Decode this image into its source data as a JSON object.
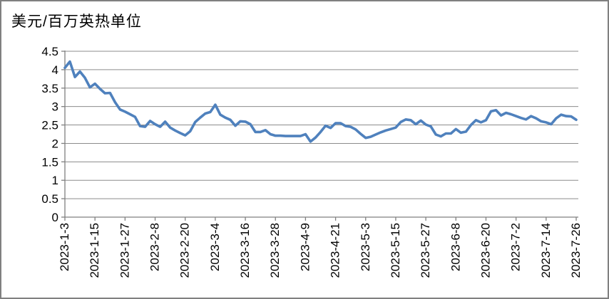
{
  "chart": {
    "title": "美元/百万英热单位",
    "colors": {
      "line": "#4F81BD",
      "gridline": "#8C8C8C",
      "axis": "#808080",
      "text": "#000000",
      "background": "#FFFFFF",
      "frame_border": "#808080"
    }
  },
  "chart_data": {
    "type": "line",
    "title": "美元/百万英热单位",
    "unit": "美元/百万英热单位",
    "legend": "none",
    "grid": "horizontal",
    "ylim": [
      0,
      4.5
    ],
    "y_tick_values": [
      0,
      0.5,
      1,
      1.5,
      2,
      2.5,
      3,
      3.5,
      4,
      4.5
    ],
    "y_tick_labels": [
      "0",
      "0.5",
      "1",
      "1.5",
      "2",
      "2.5",
      "3",
      "3.5",
      "4",
      "4.5"
    ],
    "x_range_days": [
      0,
      204
    ],
    "x_tick_days": [
      0,
      12,
      24,
      36,
      48,
      60,
      72,
      84,
      96,
      108,
      120,
      132,
      144,
      156,
      168,
      180,
      192,
      204
    ],
    "x_tick_labels": [
      "2023-1-3",
      "2023-1-15",
      "2023-1-27",
      "2023-2-8",
      "2023-2-20",
      "2023-3-4",
      "2023-3-16",
      "2023-3-28",
      "2023-4-9",
      "2023-4-21",
      "2023-5-3",
      "2023-5-15",
      "2023-5-27",
      "2023-6-8",
      "2023-6-20",
      "2023-7-2",
      "2023-7-14",
      "2023-7-26"
    ],
    "series": [
      {
        "x_days": [
          0,
          2,
          4,
          6,
          8,
          10,
          12,
          14,
          16,
          18,
          20,
          22,
          24,
          26,
          28,
          30,
          32,
          34,
          36,
          38,
          40,
          42,
          44,
          46,
          48,
          50,
          52,
          54,
          56,
          58,
          60,
          62,
          64,
          66,
          68,
          70,
          72,
          74,
          76,
          78,
          80,
          82,
          84,
          86,
          88,
          90,
          92,
          94,
          96,
          98,
          100,
          102,
          104,
          106,
          108,
          110,
          112,
          114,
          116,
          118,
          120,
          122,
          124,
          126,
          128,
          130,
          132,
          134,
          136,
          138,
          140,
          142,
          144,
          146,
          148,
          150,
          152,
          154,
          156,
          158,
          160,
          162,
          164,
          166,
          168,
          170,
          172,
          174,
          176,
          178,
          180,
          182,
          184,
          186,
          188,
          190,
          192,
          194,
          196,
          198,
          200,
          202,
          204
        ],
        "values": [
          4.05,
          4.22,
          3.8,
          3.95,
          3.78,
          3.52,
          3.62,
          3.48,
          3.36,
          3.37,
          3.12,
          2.92,
          2.86,
          2.79,
          2.72,
          2.47,
          2.45,
          2.61,
          2.52,
          2.45,
          2.59,
          2.43,
          2.35,
          2.28,
          2.22,
          2.33,
          2.58,
          2.7,
          2.81,
          2.85,
          3.05,
          2.78,
          2.7,
          2.64,
          2.48,
          2.6,
          2.59,
          2.52,
          2.31,
          2.31,
          2.36,
          2.25,
          2.21,
          2.21,
          2.2,
          2.2,
          2.2,
          2.2,
          2.25,
          2.05,
          2.16,
          2.31,
          2.48,
          2.42,
          2.55,
          2.55,
          2.47,
          2.45,
          2.38,
          2.26,
          2.15,
          2.18,
          2.24,
          2.3,
          2.35,
          2.39,
          2.43,
          2.58,
          2.65,
          2.63,
          2.52,
          2.62,
          2.51,
          2.46,
          2.24,
          2.19,
          2.27,
          2.27,
          2.39,
          2.29,
          2.32,
          2.5,
          2.63,
          2.57,
          2.63,
          2.87,
          2.9,
          2.76,
          2.83,
          2.79,
          2.74,
          2.69,
          2.65,
          2.74,
          2.68,
          2.6,
          2.57,
          2.52,
          2.68,
          2.78,
          2.74,
          2.73,
          2.64
        ]
      }
    ]
  }
}
